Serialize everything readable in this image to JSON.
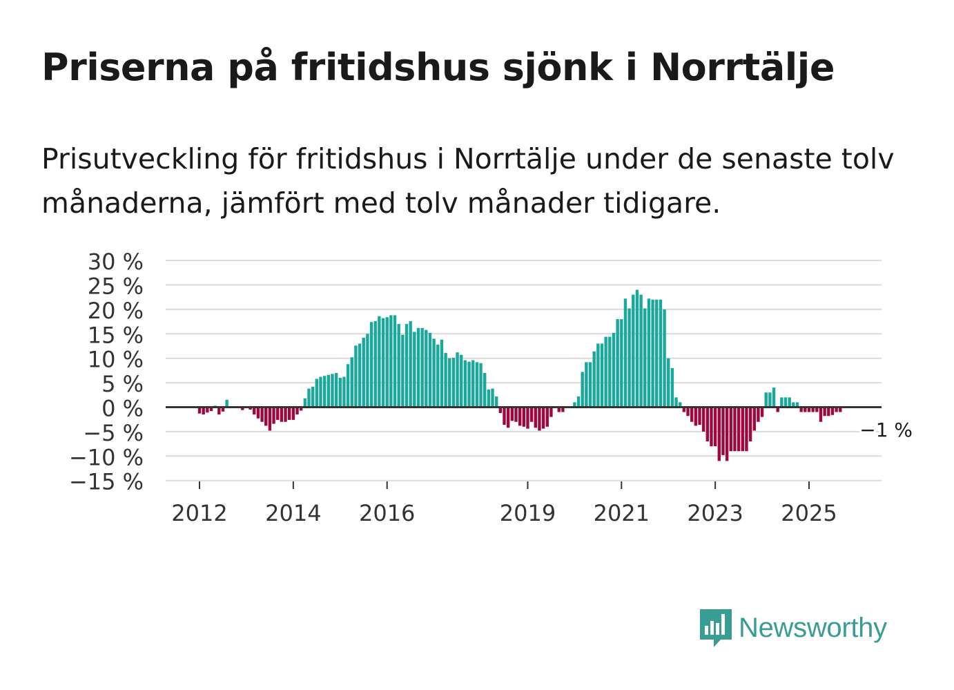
{
  "title": "Priserna på fritidshus sjönk i Norrtälje",
  "subtitle": "Prisutveckling för fritidshus i Norrtälje under de senaste tolv månaderna, jämfört med tolv månader tidigare.",
  "brand": {
    "name": "Newsworthy",
    "icon": "newsworthy-logo-icon",
    "color": "#3a9d94"
  },
  "colors": {
    "positive": "#19a99c",
    "negative": "#a0063f",
    "grid": "#dadada",
    "zero": "#333333"
  },
  "chart_data": {
    "type": "bar",
    "title": "Priserna på fritidshus sjönk i Norrtälje",
    "xlabel": "",
    "ylabel": "",
    "ylim": [
      -15,
      30
    ],
    "yticks": [
      {
        "value": 30,
        "label": "30 %"
      },
      {
        "value": 25,
        "label": "25 %"
      },
      {
        "value": 20,
        "label": "20 %"
      },
      {
        "value": 15,
        "label": "15 %"
      },
      {
        "value": 10,
        "label": "10 %"
      },
      {
        "value": 5,
        "label": "5 %"
      },
      {
        "value": 0,
        "label": "0 %"
      },
      {
        "value": -5,
        "label": "−5 %"
      },
      {
        "value": -10,
        "label": "−10 %"
      },
      {
        "value": -15,
        "label": "−15 %"
      }
    ],
    "start": "2011-06",
    "xticks": [
      {
        "index": 7,
        "label": "2012"
      },
      {
        "index": 31,
        "label": "2014"
      },
      {
        "index": 55,
        "label": "2016"
      },
      {
        "index": 91,
        "label": "2019"
      },
      {
        "index": 115,
        "label": "2021"
      },
      {
        "index": 139,
        "label": "2023"
      },
      {
        "index": 163,
        "label": "2025"
      }
    ],
    "values": [
      0,
      0,
      0,
      0,
      0,
      0,
      0,
      -1.3,
      -1.5,
      -1.1,
      -0.8,
      0.3,
      -1.5,
      -0.9,
      1.5,
      0,
      0,
      0,
      -0.6,
      0,
      -0.5,
      -1.5,
      -2.3,
      -3,
      -3.8,
      -4.8,
      -3.4,
      -2.6,
      -3,
      -3,
      -2.6,
      -2.6,
      -1.5,
      -0.7,
      1.8,
      3.8,
      4.2,
      5.8,
      6.2,
      6.4,
      6.6,
      6.8,
      7,
      6,
      6.2,
      8.8,
      10.2,
      12.6,
      13,
      14.2,
      15,
      17.4,
      17.6,
      18.6,
      18.2,
      18.4,
      18.8,
      18.8,
      17,
      14.8,
      17,
      17.6,
      15.4,
      16.2,
      16.2,
      15.8,
      15.2,
      14,
      12.8,
      13.8,
      11.1,
      10,
      10.1,
      11.2,
      10.7,
      9.6,
      9.3,
      9.6,
      9.2,
      9,
      7,
      3.6,
      3.8,
      2.2,
      -1.2,
      -3.6,
      -4.2,
      -2.8,
      -3,
      -3.8,
      -4,
      -4.4,
      -3,
      -4.2,
      -4.8,
      -4.4,
      -4,
      -2,
      -0.2,
      -1,
      -1,
      -0.2,
      0,
      1,
      2.2,
      7.2,
      9.2,
      9.2,
      11.4,
      13,
      13,
      14.4,
      14.4,
      15.2,
      18,
      18,
      22.2,
      20.2,
      23,
      24,
      23,
      20.2,
      22.2,
      22,
      22,
      22,
      20,
      10,
      8,
      2,
      1,
      -1,
      -1.8,
      -3,
      -3.8,
      -3.6,
      -5,
      -7,
      -8,
      -8,
      -11,
      -9.8,
      -11,
      -9,
      -9,
      -9,
      -9,
      -9,
      -7,
      -4.8,
      -3,
      -2,
      3,
      3,
      4,
      -1,
      2,
      2,
      2,
      1,
      1,
      -1,
      -1,
      -1,
      -1,
      -1,
      -3,
      -1.8,
      -1.8,
      -1.6,
      -1,
      -1
    ],
    "annotation": {
      "text": "−1 %",
      "index": 174
    }
  }
}
